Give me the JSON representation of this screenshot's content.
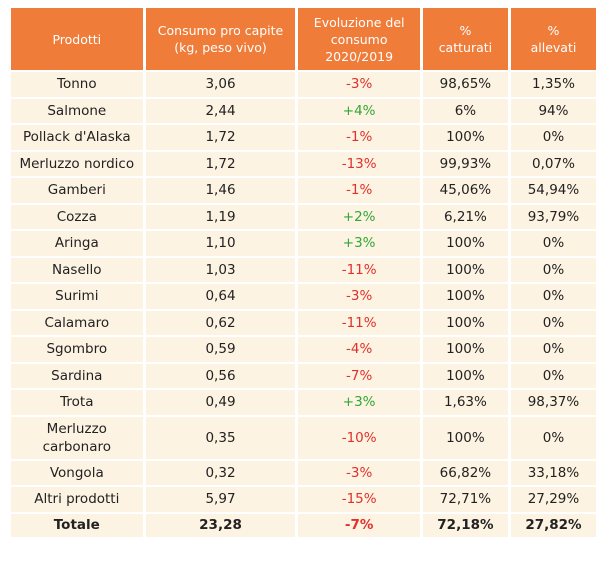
{
  "headers": {
    "products": "Prodotti",
    "consumption_line1": "Consumo pro capite",
    "consumption_line2": "(kg, peso vivo)",
    "evolution_line1": "Evoluzione del",
    "evolution_line2": "consumo",
    "evolution_line3": "2020/2019",
    "caught_line1": "%",
    "caught_line2": "catturati",
    "farmed_line1": "%",
    "farmed_line2": "allevati"
  },
  "rows": [
    {
      "product": "Tonno",
      "consumption": "3,06",
      "evolution": "-3%",
      "trend": "neg",
      "caught": "98,65%",
      "farmed": "1,35%"
    },
    {
      "product": "Salmone",
      "consumption": "2,44",
      "evolution": "+4%",
      "trend": "pos",
      "caught": "6%",
      "farmed": "94%"
    },
    {
      "product": "Pollack d'Alaska",
      "consumption": "1,72",
      "evolution": "-1%",
      "trend": "neg",
      "caught": "100%",
      "farmed": "0%"
    },
    {
      "product": "Merluzzo nordico",
      "consumption": "1,72",
      "evolution": "-13%",
      "trend": "neg",
      "caught": "99,93%",
      "farmed": "0,07%"
    },
    {
      "product": "Gamberi",
      "consumption": "1,46",
      "evolution": "-1%",
      "trend": "neg",
      "caught": "45,06%",
      "farmed": "54,94%"
    },
    {
      "product": "Cozza",
      "consumption": "1,19",
      "evolution": "+2%",
      "trend": "pos",
      "caught": "6,21%",
      "farmed": "93,79%"
    },
    {
      "product": "Aringa",
      "consumption": "1,10",
      "evolution": "+3%",
      "trend": "pos",
      "caught": "100%",
      "farmed": "0%"
    },
    {
      "product": "Nasello",
      "consumption": "1,03",
      "evolution": "-11%",
      "trend": "neg",
      "caught": "100%",
      "farmed": "0%"
    },
    {
      "product": "Surimi",
      "consumption": "0,64",
      "evolution": "-3%",
      "trend": "neg",
      "caught": "100%",
      "farmed": "0%"
    },
    {
      "product": "Calamaro",
      "consumption": "0,62",
      "evolution": "-11%",
      "trend": "neg",
      "caught": "100%",
      "farmed": "0%"
    },
    {
      "product": "Sgombro",
      "consumption": "0,59",
      "evolution": "-4%",
      "trend": "neg",
      "caught": "100%",
      "farmed": "0%"
    },
    {
      "product": "Sardina",
      "consumption": "0,56",
      "evolution": "-7%",
      "trend": "neg",
      "caught": "100%",
      "farmed": "0%"
    },
    {
      "product": "Trota",
      "consumption": "0,49",
      "evolution": "+3%",
      "trend": "pos",
      "caught": "1,63%",
      "farmed": "98,37%"
    },
    {
      "product_line1": "Merluzzo",
      "product_line2": "carbonaro",
      "consumption": "0,35",
      "evolution": "-10%",
      "trend": "neg",
      "caught": "100%",
      "farmed": "0%"
    },
    {
      "product": "Vongola",
      "consumption": "0,32",
      "evolution": "-3%",
      "trend": "neg",
      "caught": "66,82%",
      "farmed": "33,18%"
    },
    {
      "product": "Altri prodotti",
      "consumption": "5,97",
      "evolution": "-15%",
      "trend": "neg",
      "caught": "72,71%",
      "farmed": "27,29%"
    }
  ],
  "total": {
    "product": "Totale",
    "consumption": "23,28",
    "evolution": "-7%",
    "caught": "72,18%",
    "farmed": "27,82%"
  },
  "colors": {
    "header_bg": "#f07c3a",
    "row_bg": "#fdf3e2",
    "negative": "#e0312b",
    "positive": "#2fa836"
  }
}
